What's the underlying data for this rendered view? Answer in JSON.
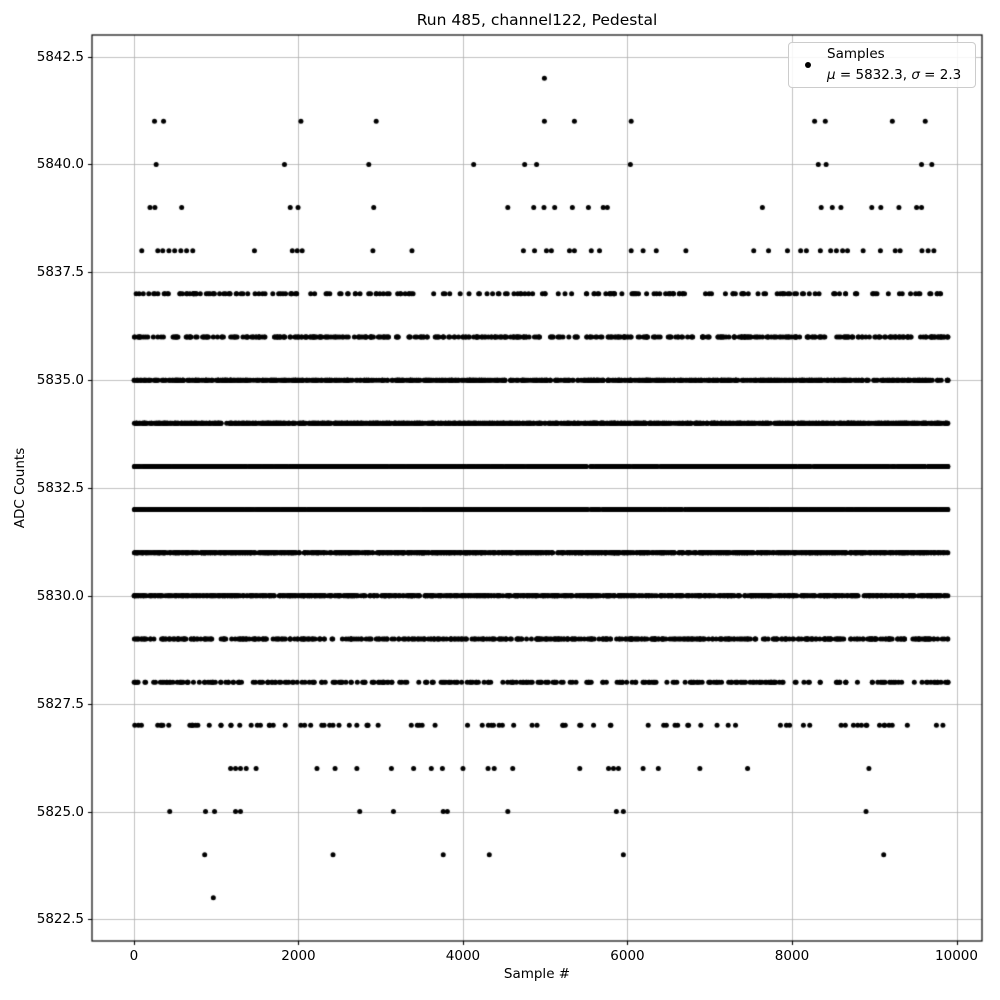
{
  "chart_data": {
    "type": "scatter",
    "title": "Run 485, channel122, Pedestal",
    "xlabel": "Sample #",
    "ylabel": "ADC Counts",
    "legend": {
      "position": "upper right",
      "marker": "black-dot",
      "line1": "Samples",
      "mu_symbol": "μ",
      "mu_rest": " = 5832.3, ",
      "sigma_symbol": "σ",
      "sigma_rest": " = 2.3",
      "line2_text": "μ = 5832.3, σ = 2.3"
    },
    "stats": {
      "mean_adc": 5832.3,
      "std_adc": 2.3
    },
    "axes": {
      "xlim": [
        -510,
        10310
      ],
      "ylim": [
        5822.0,
        5843.0
      ],
      "xticks": [
        0,
        2000,
        4000,
        6000,
        8000,
        10000
      ],
      "xtick_labels": [
        "0",
        "2000",
        "4000",
        "6000",
        "8000",
        "10000"
      ],
      "yticks": [
        5822.5,
        5825.0,
        5827.5,
        5830.0,
        5832.5,
        5835.0,
        5837.5,
        5840.0,
        5842.5
      ],
      "ytick_labels": [
        "5822.5",
        "5825.0",
        "5827.5",
        "5830.0",
        "5832.5",
        "5835.0",
        "5837.5",
        "5840.0",
        "5842.5"
      ],
      "grid": true,
      "grid_color": "#b0b0b0",
      "spine_color": "#000000"
    },
    "marker": {
      "color": "#000000",
      "radius_px": 2.5
    },
    "sample_range": [
      0,
      9900
    ],
    "adc_value_range": [
      5823,
      5842
    ],
    "n_samples_approx": 9900,
    "points_by_level": {
      "5842": [
        4990
      ],
      "5841": [
        250,
        360,
        2030,
        2945,
        4990,
        5355,
        6045,
        8275,
        8405,
        9220,
        9620
      ],
      "5840": [
        270,
        1830,
        2855,
        4130,
        4750,
        4895,
        6035,
        8320,
        8415,
        9575,
        9700
      ],
      "5839": [
        195,
        255,
        580,
        1900,
        1995,
        2915,
        4545,
        4860,
        4985,
        5115,
        5330,
        5525,
        5705,
        5755,
        7640,
        8355,
        8490,
        8595,
        8970,
        9080,
        9300,
        9515,
        9575
      ],
      "5838": [
        95,
        290,
        350,
        425,
        495,
        570,
        640,
        715,
        1465,
        1925,
        1985,
        2045,
        2905,
        3380,
        4735,
        4870,
        5015,
        5075,
        5295,
        5355,
        5560,
        5660,
        6045,
        6190,
        6350,
        6710,
        7535,
        7715,
        7945,
        8105,
        8175,
        8345,
        8470,
        8540,
        8615,
        8675,
        8865,
        9075,
        9255,
        9315,
        9580,
        9655,
        9725
      ],
      "5826": [
        1175,
        1235,
        1295,
        1365,
        1485,
        2225,
        2445,
        2710,
        3130,
        3400,
        3615,
        3750,
        4000,
        4305,
        4380,
        4605,
        5420,
        5770,
        5830,
        5890,
        6190,
        6375,
        6880,
        7460,
        8935
      ],
      "5825": [
        435,
        870,
        980,
        1235,
        1295,
        2745,
        3155,
        3760,
        3810,
        4545,
        5865,
        5950,
        8900
      ],
      "5824": [
        860,
        2420,
        3760,
        4320,
        5950,
        9115
      ],
      "5823": [
        965
      ]
    },
    "approx_counts_by_level": {
      "5837": 205,
      "5836": 440,
      "5835": 830,
      "5834": 1250,
      "5833": 1600,
      "5832": 1660,
      "5831": 1350,
      "5830": 950,
      "5829": 520,
      "5828": 290,
      "5827": 95
    },
    "prng_seed": 20250485
  }
}
